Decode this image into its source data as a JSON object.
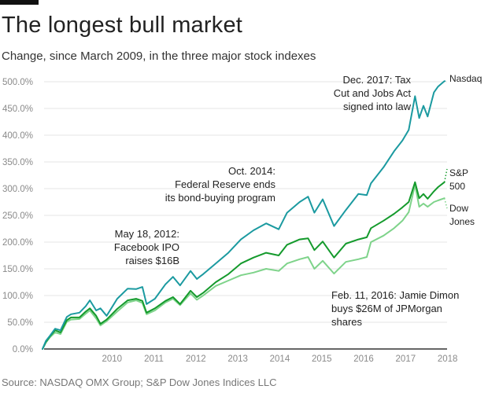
{
  "header": {
    "title": "The longest bull market",
    "subtitle": "Change, since March 2009, in the three major stock indexes"
  },
  "footer": {
    "source": "Source: NASDAQ OMX Group; S&P Dow Jones Indices LLC"
  },
  "chart_data": {
    "type": "line",
    "title": "The longest bull market",
    "subtitle": "Change, since March 2009, in the three major stock indexes",
    "xlabel": "",
    "ylabel": "",
    "xlim": [
      2009.17,
      2018.8
    ],
    "ylim": [
      0,
      500
    ],
    "grid": true,
    "legend": "direct labels at right end of lines",
    "x_ticks": [
      2010,
      2011,
      2012,
      2013,
      2014,
      2015,
      2016,
      2017,
      2018
    ],
    "x_tick_labels": [
      "2010",
      "2011",
      "2012",
      "2013",
      "2014",
      "2015",
      "2016",
      "2017",
      "2018"
    ],
    "y_ticks": [
      0,
      50,
      100,
      150,
      200,
      250,
      300,
      350,
      400,
      450,
      500
    ],
    "y_tick_labels": [
      "0.0%",
      "50.0%",
      "100.0%",
      "150.0%",
      "200.0%",
      "250.0%",
      "300.0%",
      "350.0%",
      "400.0%",
      "450.0%",
      "500.0%"
    ],
    "x": [
      2009.17,
      2009.25,
      2009.35,
      2009.47,
      2009.6,
      2009.75,
      2009.85,
      2010.05,
      2010.2,
      2010.3,
      2010.45,
      2010.55,
      2010.7,
      2010.95,
      2011.2,
      2011.4,
      2011.55,
      2011.65,
      2011.85,
      2012.1,
      2012.28,
      2012.45,
      2012.7,
      2012.85,
      2013.0,
      2013.3,
      2013.6,
      2013.9,
      2014.2,
      2014.5,
      2014.8,
      2015.0,
      2015.3,
      2015.5,
      2015.65,
      2015.85,
      2016.12,
      2016.4,
      2016.7,
      2016.9,
      2017.0,
      2017.3,
      2017.55,
      2017.75,
      2017.9,
      2018.05,
      2018.15,
      2018.25,
      2018.35,
      2018.5,
      2018.6,
      2018.75
    ],
    "series": [
      {
        "name": "Nasdaq",
        "label": "Nasdaq",
        "color": "#1b9aa0",
        "values": [
          0,
          15,
          25,
          38,
          35,
          60,
          65,
          68,
          80,
          91,
          72,
          76,
          62,
          94,
          113,
          112,
          116,
          84,
          94,
          121,
          135,
          119,
          146,
          131,
          140,
          160,
          180,
          205,
          222,
          235,
          224,
          255,
          275,
          285,
          255,
          280,
          230,
          260,
          290,
          288,
          310,
          340,
          370,
          390,
          410,
          473,
          432,
          455,
          435,
          480,
          491,
          501
        ]
      },
      {
        "name": "S&P 500",
        "label": "S&P\n500",
        "color": "#149a2c",
        "values": [
          0,
          13,
          24,
          35,
          31,
          54,
          59,
          59,
          70,
          76,
          62,
          47,
          55,
          75,
          91,
          94,
          90,
          68,
          76,
          90,
          97,
          84,
          109,
          97,
          105,
          125,
          140,
          160,
          171,
          180,
          175,
          195,
          205,
          207,
          185,
          201,
          171,
          197,
          205,
          209,
          226,
          240,
          253,
          265,
          275,
          312,
          282,
          290,
          281,
          295,
          303,
          312
        ]
      },
      {
        "name": "Dow Jones",
        "label": "Dow\nJones",
        "color": "#7ed38a",
        "values": [
          0,
          12,
          22,
          31,
          28,
          51,
          55,
          56,
          66,
          72,
          57,
          44,
          52,
          70,
          87,
          91,
          86,
          65,
          72,
          87,
          94,
          82,
          104,
          92,
          100,
          118,
          128,
          138,
          143,
          150,
          146,
          160,
          168,
          172,
          150,
          165,
          141,
          163,
          168,
          172,
          200,
          212,
          226,
          240,
          256,
          307,
          266,
          272,
          266,
          275,
          278,
          282
        ]
      }
    ],
    "annotations": [
      {
        "lines": [
          "May 18, 2012:",
          "Facebook IPO",
          "raises $16B"
        ],
        "x": 2012.38
      },
      {
        "lines": [
          "Oct. 2014:",
          "Federal Reserve ends",
          "its bond-buying program"
        ],
        "x": 2014.8
      },
      {
        "lines": [
          "Dec. 2017: Tax",
          "Cut and Jobs Act",
          "signed into law"
        ],
        "x": 2017.95
      },
      {
        "lines": [
          "Feb. 11, 2016: Jamie Dimon",
          "buys $26M of JPMorgan",
          "shares"
        ],
        "x": 2016.12
      }
    ]
  }
}
